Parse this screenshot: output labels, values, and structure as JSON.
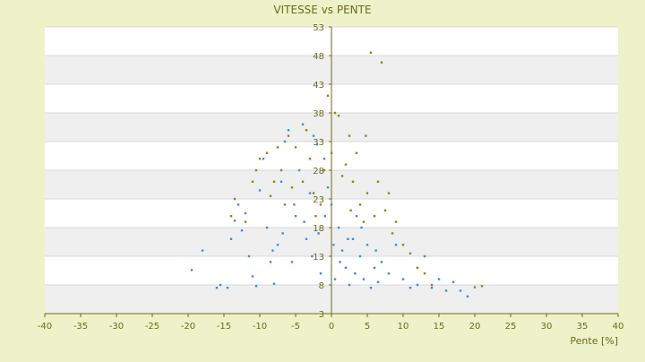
{
  "colors": {
    "background": "#eef2c9",
    "plot_background": "#ffffff",
    "band": "#efefef",
    "text": "#6b6a1f",
    "axis": "#6b6a1f",
    "series_a": "#3b8fd8",
    "series_b": "#8a8a12"
  },
  "chart_data": {
    "type": "scatter",
    "title": "VITESSE vs PENTE",
    "xlabel": "Pente [%]",
    "ylabel": "",
    "xlim": [
      -40,
      40
    ],
    "ylim": [
      3,
      53
    ],
    "x_ticks": [
      "-40",
      "-35",
      "-30",
      "-25",
      "-20",
      "-15",
      "-10",
      "-5",
      "0",
      "5",
      "10",
      "15",
      "20",
      "25",
      "30",
      "35",
      "40"
    ],
    "y_ticks": [
      "3",
      "8",
      "13",
      "18",
      "23",
      "28",
      "33",
      "38",
      "43",
      "48",
      "53"
    ],
    "grid": "alternating horizontal bands",
    "legend": "none",
    "series": [
      {
        "color": "#3b8fd8",
        "points": [
          [
            -19.5,
            10.6
          ],
          [
            -18,
            14
          ],
          [
            -16,
            7.5
          ],
          [
            -15.5,
            8
          ],
          [
            -14.5,
            7.5
          ],
          [
            -14,
            16
          ],
          [
            -13.5,
            19.2
          ],
          [
            -13,
            22
          ],
          [
            -12.5,
            17.5
          ],
          [
            -12,
            20.5
          ],
          [
            -11.5,
            13
          ],
          [
            -11,
            9.5
          ],
          [
            -10.5,
            7.8
          ],
          [
            -10,
            24.5
          ],
          [
            -9.5,
            30
          ],
          [
            -9,
            18
          ],
          [
            -8.5,
            12
          ],
          [
            -8,
            8.2
          ],
          [
            -7.5,
            15
          ],
          [
            -7,
            26
          ],
          [
            -6.5,
            33
          ],
          [
            -6,
            35
          ],
          [
            -5.5,
            12
          ],
          [
            -5,
            20
          ],
          [
            -4.5,
            28
          ],
          [
            -4,
            36
          ],
          [
            -3.5,
            16
          ],
          [
            -3,
            24
          ],
          [
            -2.5,
            34
          ],
          [
            -2,
            32.5
          ],
          [
            -1.5,
            10
          ],
          [
            -1,
            30
          ],
          [
            -0.5,
            25
          ],
          [
            0,
            22
          ],
          [
            0.5,
            9
          ],
          [
            1,
            18
          ],
          [
            1.5,
            14
          ],
          [
            2,
            11
          ],
          [
            2.5,
            8
          ],
          [
            3,
            16
          ],
          [
            3.5,
            20
          ],
          [
            4,
            13
          ],
          [
            4.5,
            9
          ],
          [
            5,
            15
          ],
          [
            5.5,
            7.5
          ],
          [
            6,
            11
          ],
          [
            6.5,
            8.5
          ],
          [
            7,
            12
          ],
          [
            8,
            10
          ],
          [
            9,
            15
          ],
          [
            10,
            9
          ],
          [
            11,
            7.5
          ],
          [
            12,
            8
          ],
          [
            13,
            13
          ],
          [
            14,
            7.5
          ],
          [
            15,
            9
          ],
          [
            16,
            7
          ],
          [
            17,
            8.5
          ],
          [
            18,
            7
          ],
          [
            19,
            6
          ],
          [
            -8.2,
            14
          ],
          [
            -6.8,
            17
          ],
          [
            -5.2,
            22
          ],
          [
            -3.8,
            19
          ],
          [
            -2.7,
            13
          ],
          [
            -1.8,
            17
          ],
          [
            -0.9,
            20
          ],
          [
            0.3,
            15
          ],
          [
            1.2,
            12
          ],
          [
            2.3,
            16
          ],
          [
            3.3,
            10
          ],
          [
            4.2,
            18
          ],
          [
            6.2,
            14
          ]
        ]
      },
      {
        "color": "#8a8a12",
        "points": [
          [
            -14,
            20
          ],
          [
            -13.5,
            23
          ],
          [
            -12,
            19
          ],
          [
            -11,
            26
          ],
          [
            -10.5,
            28
          ],
          [
            -10,
            30
          ],
          [
            -9,
            31
          ],
          [
            -8.5,
            23.5
          ],
          [
            -8,
            26
          ],
          [
            -7.5,
            32
          ],
          [
            -7,
            28
          ],
          [
            -6,
            34
          ],
          [
            -5.5,
            25
          ],
          [
            -5,
            32
          ],
          [
            -4,
            26
          ],
          [
            -3.5,
            35
          ],
          [
            -3,
            30
          ],
          [
            -2.5,
            24
          ],
          [
            -1.5,
            22
          ],
          [
            -1,
            28
          ],
          [
            -0.5,
            41
          ],
          [
            0,
            31
          ],
          [
            0.5,
            38
          ],
          [
            1,
            37.5
          ],
          [
            1.5,
            27
          ],
          [
            2,
            29
          ],
          [
            2.5,
            34
          ],
          [
            3,
            26
          ],
          [
            3.5,
            31
          ],
          [
            4,
            22
          ],
          [
            4.5,
            19
          ],
          [
            5,
            24
          ],
          [
            5.5,
            48.5
          ],
          [
            6,
            20
          ],
          [
            6.5,
            26
          ],
          [
            7,
            46.8
          ],
          [
            7.5,
            21
          ],
          [
            8,
            24
          ],
          [
            8.5,
            17
          ],
          [
            9,
            19
          ],
          [
            10,
            15
          ],
          [
            11,
            13.5
          ],
          [
            12,
            11
          ],
          [
            13,
            10
          ],
          [
            14,
            8
          ],
          [
            20,
            7.6
          ],
          [
            21,
            7.8
          ],
          [
            4.8,
            34
          ],
          [
            2.7,
            21
          ],
          [
            -2.2,
            20
          ],
          [
            -6.5,
            22
          ]
        ]
      }
    ]
  }
}
